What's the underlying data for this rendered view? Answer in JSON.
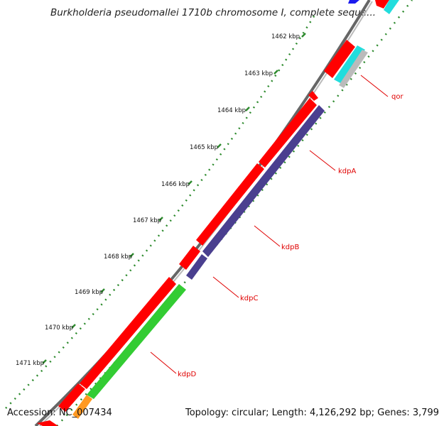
{
  "title": "Burkholderia pseudomallei 1710b chromosome I, complete seque...",
  "accession": "Accession: NC_007434",
  "topology": "Topology: circular; Length: 4,126,292 bp; Genes: 3,799",
  "kbp_ticks": [
    "1462 kbp",
    "1463 kbp",
    "1464 kbp",
    "1465 kbp",
    "1466 kbp",
    "1467 kbp",
    "1468 kbp",
    "1469 kbp",
    "1470 kbp",
    "1471 kbp"
  ],
  "gene_labels": [
    "qor",
    "kdpA",
    "kdpB",
    "kdpC",
    "kdpD"
  ],
  "colors": {
    "forward_cds": "#ff0000",
    "kdp_operon_blue": "#4a3f8f",
    "kdp_green": "#33cc33",
    "cyan_feature": "#22dddd",
    "grey_feature": "#bbbbbb",
    "orange_feature": "#ff9922",
    "backbone": "#888888",
    "gc_dots": "#2e8b2e",
    "label_red": "#e00000"
  }
}
